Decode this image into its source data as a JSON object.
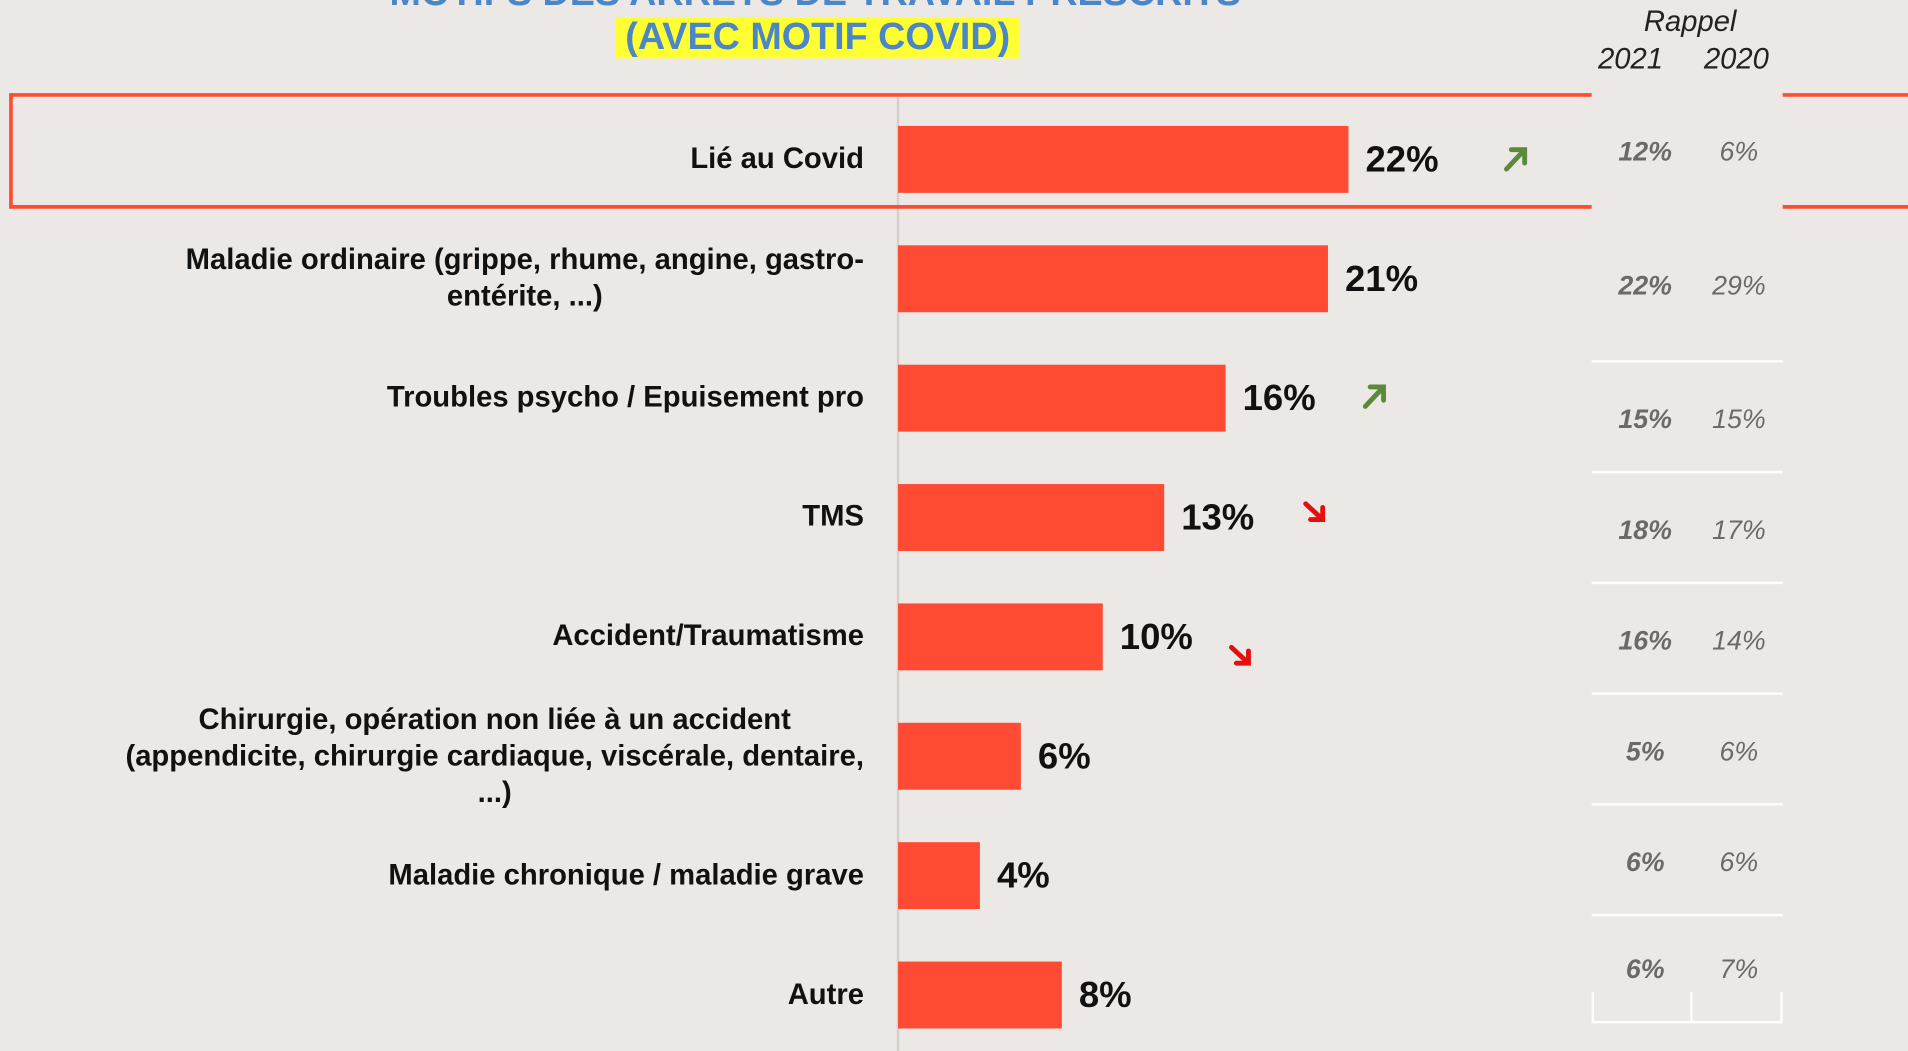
{
  "chart_data": {
    "type": "bar",
    "orientation": "horizontal",
    "title": "MOTIFS DES ARRETS DE TRAVAIL PRESCRITS",
    "subtitle": "(AVEC MOTIF COVID)",
    "categories": [
      "Lié au Covid",
      "Maladie ordinaire (grippe, rhume, angine, gastro-\nentérite, ...)",
      "Troubles psycho / Epuisement pro",
      "TMS",
      "Accident/Traumatisme",
      "Chirurgie, opération non liée à un accident\n(appendicite, chirurgie cardiaque, viscérale, dentaire,\n...)",
      "Maladie chronique / maladie grave",
      "Autre"
    ],
    "values": [
      22,
      21,
      16,
      13,
      10,
      6,
      4,
      8
    ],
    "value_labels": [
      "22%",
      "21%",
      "16%",
      "13%",
      "10%",
      "6%",
      "4%",
      "8%"
    ],
    "color": "#ff4b33",
    "xlim": [
      0,
      40
    ]
  },
  "rappel": {
    "title": "Rappel",
    "columns": [
      "2021",
      "2020"
    ],
    "rows": [
      [
        "12%",
        "6%"
      ],
      [
        "22%",
        "29%"
      ],
      [
        "15%",
        "15%"
      ],
      [
        "18%",
        "17%"
      ],
      [
        "16%",
        "14%"
      ],
      [
        "5%",
        "6%"
      ],
      [
        "6%",
        "6%"
      ],
      [
        "6%",
        "7%"
      ]
    ]
  }
}
